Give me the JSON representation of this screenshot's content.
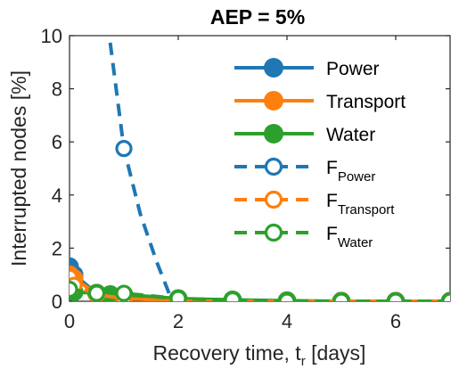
{
  "chart_data": {
    "type": "line",
    "title": "AEP = 5%",
    "xlabel_main": "Recovery time, t",
    "xlabel_sub": "r",
    "xlabel_unit": " [days]",
    "ylabel": "Interrupted nodes [%]",
    "xlim": [
      0,
      7
    ],
    "ylim": [
      0,
      10
    ],
    "xticks": [
      0,
      2,
      4,
      6
    ],
    "yticks": [
      0,
      2,
      4,
      6,
      8,
      10
    ],
    "grid": false,
    "legend_position": "top-right",
    "colors": {
      "power": "#1f77b4",
      "transport": "#ff7f0e",
      "water": "#2ca02c"
    },
    "series": [
      {
        "name": "Power",
        "color": "#1f77b4",
        "style": "solid",
        "marker": "filled",
        "x": [
          0,
          0.083,
          0.5,
          1,
          2,
          3,
          4,
          5,
          6,
          7
        ],
        "y": [
          1.3,
          1.0,
          0.3,
          0.15,
          0.05,
          0.02,
          0,
          0,
          0,
          0
        ]
      },
      {
        "name": "Transport",
        "color": "#ff7f0e",
        "style": "solid",
        "marker": "filled",
        "x": [
          0,
          0.083,
          0.5,
          1,
          2,
          3,
          4,
          5,
          6,
          7
        ],
        "y": [
          1.0,
          0.85,
          0.3,
          0.1,
          0.02,
          0,
          0,
          0,
          0,
          0
        ]
      },
      {
        "name": "Water",
        "color": "#2ca02c",
        "style": "solid",
        "marker": "filled",
        "x": [
          0,
          0.083,
          0.5,
          0.75,
          1,
          2,
          3,
          4,
          5,
          6,
          7
        ],
        "y": [
          0.4,
          0.35,
          0.3,
          0.25,
          0.25,
          0.1,
          0.05,
          0.02,
          0,
          0,
          0
        ]
      },
      {
        "name": "F",
        "sub": "Power",
        "color": "#1f77b4",
        "style": "dashed",
        "marker": "open",
        "x": [
          0.7,
          1,
          1.3,
          1.6,
          1.85,
          2,
          3,
          4,
          5,
          6,
          7
        ],
        "y": [
          10.5,
          5.75,
          3.3,
          1.5,
          0.2,
          0,
          0,
          0,
          0,
          0,
          0
        ],
        "marker_x": [
          1,
          2,
          3,
          4,
          5,
          6,
          7
        ],
        "marker_y": [
          5.75,
          0,
          0,
          0,
          0,
          0,
          0
        ]
      },
      {
        "name": "F",
        "sub": "Transport",
        "color": "#ff7f0e",
        "style": "dashed",
        "marker": "open",
        "x": [
          0,
          0.083,
          0.5,
          1,
          2,
          3,
          4,
          5,
          6,
          7
        ],
        "y": [
          0.9,
          0.6,
          0.25,
          0.1,
          0,
          0,
          0,
          0,
          0,
          0
        ],
        "marker_x": [
          0,
          0.083,
          0.5,
          1,
          2,
          3,
          4,
          5,
          6,
          7
        ],
        "marker_y": [
          0.9,
          0.6,
          0.25,
          0.1,
          0,
          0,
          0,
          0,
          0,
          0
        ]
      },
      {
        "name": "F",
        "sub": "Water",
        "color": "#2ca02c",
        "style": "dashed",
        "marker": "open",
        "x": [
          0,
          0.5,
          1,
          2,
          3,
          4,
          5,
          6,
          7
        ],
        "y": [
          0.45,
          0.3,
          0.3,
          0.1,
          0.05,
          0,
          0,
          0,
          0
        ],
        "marker_x": [
          0,
          0.5,
          1,
          2,
          3,
          4,
          5,
          6,
          7
        ],
        "marker_y": [
          0.45,
          0.3,
          0.3,
          0.1,
          0.05,
          0,
          0,
          0,
          0
        ]
      }
    ]
  }
}
